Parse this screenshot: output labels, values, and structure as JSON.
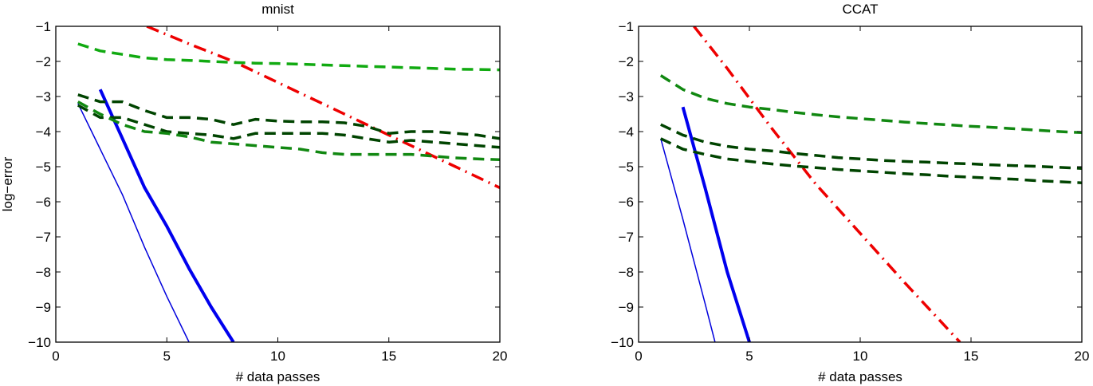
{
  "chart_data": [
    {
      "type": "line",
      "title": "mnist",
      "xlabel": "# data passes",
      "ylabel": "log−error",
      "xlim": [
        0,
        20
      ],
      "ylim": [
        -10,
        -1
      ],
      "xticks": [
        "0",
        "5",
        "10",
        "15",
        "20"
      ],
      "yticks": [
        "−1",
        "−2",
        "−3",
        "−4",
        "−5",
        "−6",
        "−7",
        "−8",
        "−9",
        "−10"
      ],
      "grid": false,
      "legend": null,
      "series": [
        {
          "name": "blue-thin-solid",
          "color": "#0000dd",
          "style": "solid",
          "width": 1.5,
          "x": [
            1,
            2,
            3,
            4,
            5,
            6
          ],
          "y": [
            -3.2,
            -4.5,
            -5.8,
            -7.3,
            -8.7,
            -10
          ]
        },
        {
          "name": "blue-thick-solid",
          "color": "#0000ee",
          "style": "solid",
          "width": 4,
          "x": [
            2,
            3,
            4,
            5,
            6,
            7,
            8
          ],
          "y": [
            -2.8,
            -4.2,
            -5.6,
            -6.7,
            -7.9,
            -9.0,
            -10
          ]
        },
        {
          "name": "red-dashdot",
          "color": "#ee0000",
          "style": "dashdot",
          "width": 3.5,
          "x": [
            4.1,
            6,
            8,
            10,
            12,
            14,
            16,
            18,
            20
          ],
          "y": [
            -1.0,
            -1.5,
            -2.0,
            -2.6,
            -3.2,
            -3.8,
            -4.4,
            -5.0,
            -5.6
          ]
        },
        {
          "name": "green-light-dashed-top",
          "color": "#11aa11",
          "style": "dashed",
          "width": 3.5,
          "x": [
            1,
            2,
            3,
            4,
            5,
            6,
            7,
            8,
            9,
            10,
            11,
            12,
            13,
            14,
            15,
            16,
            17,
            18,
            19,
            20
          ],
          "y": [
            -1.5,
            -1.7,
            -1.8,
            -1.9,
            -1.95,
            -1.97,
            -2.0,
            -2.03,
            -2.05,
            -2.06,
            -2.08,
            -2.1,
            -2.12,
            -2.14,
            -2.16,
            -2.18,
            -2.2,
            -2.22,
            -2.23,
            -2.24
          ]
        },
        {
          "name": "darkgreen-dashed-a",
          "color": "#004400",
          "style": "dashed",
          "width": 3.5,
          "x": [
            1,
            2,
            3,
            4,
            5,
            6,
            7,
            8,
            9,
            10,
            11,
            12,
            13,
            14,
            15,
            16,
            17,
            18,
            19,
            20
          ],
          "y": [
            -2.95,
            -3.15,
            -3.15,
            -3.4,
            -3.6,
            -3.6,
            -3.65,
            -3.8,
            -3.65,
            -3.7,
            -3.72,
            -3.72,
            -3.75,
            -3.85,
            -4.05,
            -4.0,
            -4.0,
            -4.05,
            -4.1,
            -4.2
          ]
        },
        {
          "name": "darkgreen-dashed-b",
          "color": "#004400",
          "style": "dashed",
          "width": 3.5,
          "x": [
            1,
            2,
            3,
            4,
            5,
            6,
            7,
            8,
            9,
            10,
            11,
            12,
            13,
            14,
            15,
            16,
            17,
            18,
            19,
            20
          ],
          "y": [
            -3.25,
            -3.6,
            -3.6,
            -3.8,
            -4.0,
            -4.05,
            -4.1,
            -4.2,
            -4.05,
            -4.05,
            -4.05,
            -4.05,
            -4.1,
            -4.2,
            -4.3,
            -4.25,
            -4.3,
            -4.35,
            -4.4,
            -4.45
          ]
        },
        {
          "name": "green-mid-dashed",
          "color": "#118811",
          "style": "dashed",
          "width": 3.5,
          "x": [
            1,
            2,
            3,
            4,
            5,
            6,
            7,
            8,
            9,
            10,
            11,
            12,
            13,
            14,
            15,
            16,
            17,
            18,
            19,
            20
          ],
          "y": [
            -3.15,
            -3.5,
            -3.8,
            -4.0,
            -4.05,
            -4.15,
            -4.3,
            -4.35,
            -4.4,
            -4.45,
            -4.5,
            -4.6,
            -4.65,
            -4.65,
            -4.65,
            -4.65,
            -4.7,
            -4.75,
            -4.78,
            -4.8
          ]
        }
      ]
    },
    {
      "type": "line",
      "title": "CCAT",
      "xlabel": "# data passes",
      "ylabel": "",
      "xlim": [
        0,
        20
      ],
      "ylim": [
        -10,
        -1
      ],
      "xticks": [
        "0",
        "5",
        "10",
        "15",
        "20"
      ],
      "yticks": [
        "−1",
        "−2",
        "−3",
        "−4",
        "−5",
        "−6",
        "−7",
        "−8",
        "−9",
        "−10"
      ],
      "grid": false,
      "legend": null,
      "series": [
        {
          "name": "blue-thin-solid",
          "color": "#0000dd",
          "style": "solid",
          "width": 1.5,
          "x": [
            1,
            2,
            3,
            3.45
          ],
          "y": [
            -4.2,
            -6.5,
            -8.9,
            -10
          ]
        },
        {
          "name": "blue-thick-solid",
          "color": "#0000ee",
          "style": "solid",
          "width": 4,
          "x": [
            2,
            3,
            4,
            5
          ],
          "y": [
            -3.3,
            -5.6,
            -8.0,
            -10
          ]
        },
        {
          "name": "red-dashdot",
          "color": "#ee0000",
          "style": "dashdot",
          "width": 3.5,
          "x": [
            2.5,
            4,
            6,
            8,
            10,
            12,
            14.5
          ],
          "y": [
            -1.0,
            -2.2,
            -3.9,
            -5.5,
            -6.9,
            -8.3,
            -10
          ]
        },
        {
          "name": "green-dashed-top",
          "color": "#118811",
          "style": "dashed",
          "width": 3.5,
          "x": [
            1,
            2,
            3,
            4,
            5,
            6,
            7,
            8,
            9,
            10,
            11,
            12,
            13,
            14,
            15,
            16,
            17,
            18,
            19,
            20
          ],
          "y": [
            -2.4,
            -2.8,
            -3.05,
            -3.2,
            -3.3,
            -3.37,
            -3.45,
            -3.52,
            -3.58,
            -3.63,
            -3.68,
            -3.73,
            -3.77,
            -3.81,
            -3.85,
            -3.88,
            -3.92,
            -3.96,
            -4.0,
            -4.03
          ]
        },
        {
          "name": "darkgreen-dashed-a",
          "color": "#004400",
          "style": "dashed",
          "width": 3.5,
          "x": [
            1,
            2,
            3,
            4,
            5,
            6,
            7,
            8,
            9,
            10,
            11,
            12,
            13,
            14,
            15,
            16,
            17,
            18,
            19,
            20
          ],
          "y": [
            -3.8,
            -4.1,
            -4.3,
            -4.42,
            -4.5,
            -4.55,
            -4.62,
            -4.68,
            -4.74,
            -4.78,
            -4.82,
            -4.85,
            -4.87,
            -4.9,
            -4.92,
            -4.95,
            -4.97,
            -4.99,
            -5.02,
            -5.05
          ]
        },
        {
          "name": "darkgreen-dashed-b",
          "color": "#004400",
          "style": "dashed",
          "width": 3.5,
          "x": [
            1,
            2,
            3,
            4,
            5,
            6,
            7,
            8,
            9,
            10,
            11,
            12,
            13,
            14,
            15,
            16,
            17,
            18,
            19,
            20
          ],
          "y": [
            -4.2,
            -4.5,
            -4.65,
            -4.78,
            -4.85,
            -4.92,
            -4.98,
            -5.03,
            -5.08,
            -5.12,
            -5.16,
            -5.2,
            -5.23,
            -5.27,
            -5.3,
            -5.33,
            -5.36,
            -5.4,
            -5.43,
            -5.46
          ]
        }
      ]
    }
  ]
}
